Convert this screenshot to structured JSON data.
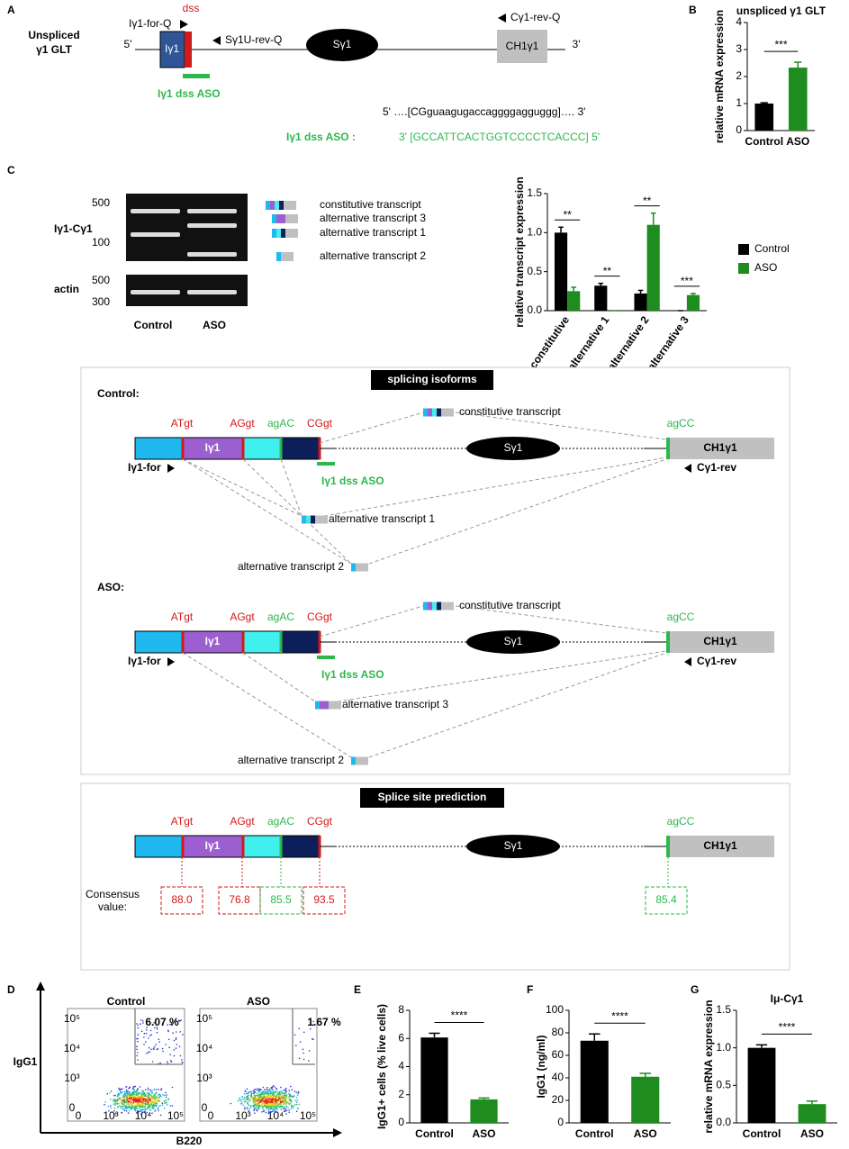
{
  "panel_labels": [
    "A",
    "B",
    "C",
    "D",
    "E",
    "F",
    "G"
  ],
  "panel_a": {
    "construct": [
      "Unspliced",
      "γ1 GLT"
    ],
    "five_prime": "5'",
    "three_prime": "3'",
    "forward_primer": "Iγ1-for-Q",
    "dss": "dss",
    "exon": "Iγ1",
    "switch_primer": "Sγ1U-rev-Q",
    "switch": "Sγ1",
    "constant_primer": "Cγ1-rev-Q",
    "constant": "CH1γ1",
    "aso": "Iγ1 dss ASO",
    "rna_sequence": "5' ….[CGguaagugaccaggggagguggg]…. 3'",
    "aso_label": "Iγ1 dss ASO :",
    "aso_sequence": "3' [GCCATTCACTGGTCCCCTCACCC] 5'"
  },
  "gel": {
    "target": "Iγ1-Cγ1",
    "control_gene": "actin",
    "ladder_top": [
      "500",
      "100"
    ],
    "ladder_bottom": [
      "500",
      "300"
    ],
    "lanes": [
      "Control",
      "ASO"
    ],
    "transcripts": [
      "constitutive transcript",
      "alternative transcript 3",
      "alternative transcript 1",
      "alternative transcript 2"
    ]
  },
  "isoforms": {
    "title": "splicing isoforms",
    "control": {
      "label": "Control:",
      "sites": [
        "ATgt",
        "AGgt",
        "agAC",
        "CGgt",
        "agCC"
      ],
      "exon": "Iγ1",
      "switch": "Sγ1",
      "constant": "CH1γ1",
      "forward": "Iγ1-for",
      "reverse": "Cγ1-rev",
      "aso": "Iγ1 dss ASO",
      "transcripts": [
        "constitutive transcript",
        "alternative transcript 1",
        "alternative transcript 2"
      ]
    },
    "aso": {
      "label": "ASO:",
      "sites": [
        "ATgt",
        "AGgt",
        "agAC",
        "CGgt",
        "agCC"
      ],
      "exon": "Iγ1",
      "switch": "Sγ1",
      "constant": "CH1γ1",
      "forward": "Iγ1-for",
      "reverse": "Cγ1-rev",
      "aso": "Iγ1 dss ASO",
      "transcripts": [
        "constitutive transcript",
        "alternative transcript 3",
        "alternative transcript 2"
      ]
    }
  },
  "prediction": {
    "title": "Splice site prediction",
    "sites": [
      "ATgt",
      "AGgt",
      "agAC",
      "CGgt",
      "agCC"
    ],
    "exon": "Iγ1",
    "switch": "Sγ1",
    "constant": "CH1γ1",
    "consensus_label": [
      "Consensus",
      "value:"
    ],
    "consensus": [
      "88.0",
      "76.8",
      "85.5",
      "93.5",
      "85.4"
    ]
  },
  "flow": {
    "samples": [
      "Control",
      "ASO"
    ],
    "gates": [
      "6.07 %",
      "1.67 %"
    ],
    "y_label": "IgG1",
    "x_label": "B220",
    "y_ticks": [
      "10⁵",
      "10⁴",
      "10³",
      "0"
    ],
    "x_ticks": [
      "0",
      "10³",
      "10⁴",
      "10⁵"
    ]
  },
  "chart_data": [
    {
      "type": "bar",
      "title": "unspliced γ1 GLT",
      "y_label": "relative mRNA expression",
      "categories": [
        "Control",
        "ASO"
      ],
      "values": [
        1.0,
        2.33
      ],
      "errors": [
        0.03,
        0.2
      ],
      "colors": [
        "#000000",
        "#1e8c1e"
      ],
      "significance": "***",
      "ylim": [
        0,
        4
      ],
      "yticks": [
        0,
        1,
        2,
        3,
        4
      ]
    },
    {
      "type": "bar",
      "y_label": "relative transcript expression",
      "categories": [
        "constitutive",
        "alternative 1",
        "alternative 2",
        "alternative 3"
      ],
      "series": [
        {
          "name": "Control",
          "color": "#000000",
          "values": [
            1.0,
            0.32,
            0.22,
            0.0
          ],
          "errors": [
            0.07,
            0.03,
            0.04,
            0.0
          ]
        },
        {
          "name": "ASO",
          "color": "#1e8c1e",
          "values": [
            0.25,
            0.0,
            1.1,
            0.2
          ],
          "errors": [
            0.05,
            0.0,
            0.15,
            0.02
          ]
        }
      ],
      "significance": [
        "**",
        "**",
        "**",
        "***"
      ],
      "ylim": [
        0,
        1.5
      ],
      "yticks": [
        {
          "value": 0,
          "label": "0.0"
        },
        {
          "value": 0.5,
          "label": "0.5"
        },
        {
          "value": 1,
          "label": "1.0"
        },
        {
          "value": 1.5,
          "label": "1.5"
        }
      ]
    },
    {
      "type": "bar",
      "y_label": "IgG1+ cells (% live cells)",
      "categories": [
        "Control",
        "ASO"
      ],
      "values": [
        6.07,
        1.67
      ],
      "errors": [
        0.3,
        0.1
      ],
      "colors": [
        "#000000",
        "#1e8c1e"
      ],
      "significance": "****",
      "ylim": [
        0,
        8
      ],
      "yticks": [
        0,
        2,
        4,
        6,
        8
      ]
    },
    {
      "type": "bar",
      "y_label": "IgG1 (ng/ml)",
      "categories": [
        "Control",
        "ASO"
      ],
      "values": [
        73,
        41
      ],
      "errors": [
        6,
        3
      ],
      "colors": [
        "#000000",
        "#1e8c1e"
      ],
      "significance": "****",
      "ylim": [
        0,
        100
      ],
      "yticks": [
        0,
        20,
        40,
        60,
        80,
        100
      ]
    },
    {
      "type": "bar",
      "title": "Iμ-Cγ1",
      "y_label": "relative mRNA expression",
      "categories": [
        "Control",
        "ASO"
      ],
      "values": [
        1.0,
        0.25
      ],
      "errors": [
        0.04,
        0.04
      ],
      "colors": [
        "#000000",
        "#1e8c1e"
      ],
      "significance": "****",
      "ylim": [
        0,
        1.5
      ],
      "yticks": [
        {
          "value": 0,
          "label": "0.0"
        },
        {
          "value": 0.5,
          "label": "0.5"
        },
        {
          "value": 1,
          "label": "1.0"
        },
        {
          "value": 1.5,
          "label": "1.5"
        }
      ]
    }
  ]
}
